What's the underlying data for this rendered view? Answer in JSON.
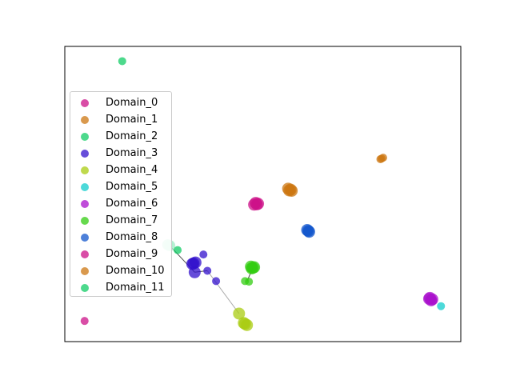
{
  "chart_data": {
    "type": "scatter",
    "title": "",
    "xlabel": "",
    "ylabel": "",
    "axes_visible": false,
    "grid": false,
    "xlim": [
      0,
      100
    ],
    "ylim": [
      0,
      100
    ],
    "legend": {
      "placement": "upper-left"
    },
    "series": [
      {
        "name": "Domain_0",
        "color": "#cc1188",
        "points": [
          [
            48.5,
            46.5
          ],
          [
            47.8,
            46.4
          ],
          [
            48.8,
            46.7
          ],
          [
            48.2,
            47.0
          ],
          [
            5.0,
            7.0
          ]
        ]
      },
      {
        "name": "Domain_1",
        "color": "#cc7711",
        "points": [
          [
            57.0,
            51.5
          ],
          [
            56.4,
            51.8
          ],
          [
            57.3,
            51.1
          ],
          [
            56.7,
            51.2
          ],
          [
            80.0,
            62.0
          ],
          [
            80.4,
            62.3
          ],
          [
            79.7,
            61.8
          ]
        ]
      },
      {
        "name": "Domain_2",
        "color": "#11cc66",
        "points": [
          [
            14.5,
            95.0
          ],
          [
            28.5,
            31.0
          ]
        ]
      },
      {
        "name": "Domain_3",
        "color": "#3311cc",
        "points": [
          [
            32.5,
            26.5
          ],
          [
            33.0,
            26.8
          ],
          [
            32.2,
            26.3
          ],
          [
            32.8,
            23.5
          ],
          [
            35.0,
            29.5
          ],
          [
            36.0,
            24.0
          ],
          [
            38.2,
            20.5
          ]
        ]
      },
      {
        "name": "Domain_4",
        "color": "#aacc11",
        "points": [
          [
            44.0,
            9.5
          ],
          [
            45.5,
            6.0
          ],
          [
            46.0,
            5.6
          ],
          [
            45.2,
            6.3
          ]
        ]
      },
      {
        "name": "Domain_5",
        "color": "#11cccc",
        "points": [
          [
            95.0,
            12.0
          ]
        ]
      },
      {
        "name": "Domain_6",
        "color": "#aa11cc",
        "points": [
          [
            92.0,
            14.5
          ],
          [
            92.5,
            14.0
          ],
          [
            92.2,
            14.8
          ],
          [
            92.8,
            14.3
          ],
          [
            93.0,
            13.8
          ]
        ]
      },
      {
        "name": "Domain_7",
        "color": "#33cc11",
        "points": [
          [
            47.5,
            25.0
          ],
          [
            47.0,
            25.4
          ],
          [
            47.8,
            25.2
          ],
          [
            47.2,
            24.8
          ],
          [
            45.5,
            20.5
          ],
          [
            46.5,
            20.3
          ]
        ]
      },
      {
        "name": "Domain_8",
        "color": "#1155cc",
        "points": [
          [
            61.5,
            37.5
          ],
          [
            61.2,
            37.8
          ],
          [
            61.7,
            37.2
          ]
        ]
      },
      {
        "name": "Domain_9",
        "color": "#cc1188",
        "points": []
      },
      {
        "name": "Domain_10",
        "color": "#cc7711",
        "points": []
      },
      {
        "name": "Domain_11",
        "color": "#11cc66",
        "points": []
      }
    ],
    "extra_marks": [
      {
        "type": "point",
        "color": "#aaeecc",
        "x": 26.5,
        "y": 32.5
      },
      {
        "type": "point",
        "color": "#aaeecc",
        "x": 26.0,
        "y": 32.8
      }
    ],
    "connections": [
      {
        "from": [
          32.8,
          23.5
        ],
        "to": [
          26.5,
          32.5
        ],
        "color": "#000000"
      },
      {
        "from": [
          32.8,
          23.5
        ],
        "to": [
          36.0,
          24.0
        ],
        "color": "#000000"
      },
      {
        "from": [
          36.0,
          24.0
        ],
        "to": [
          44.0,
          9.5
        ],
        "color": "#888888"
      },
      {
        "from": [
          46.0,
          20.4
        ],
        "to": [
          47.5,
          25.0
        ],
        "color": "#000000"
      }
    ]
  }
}
